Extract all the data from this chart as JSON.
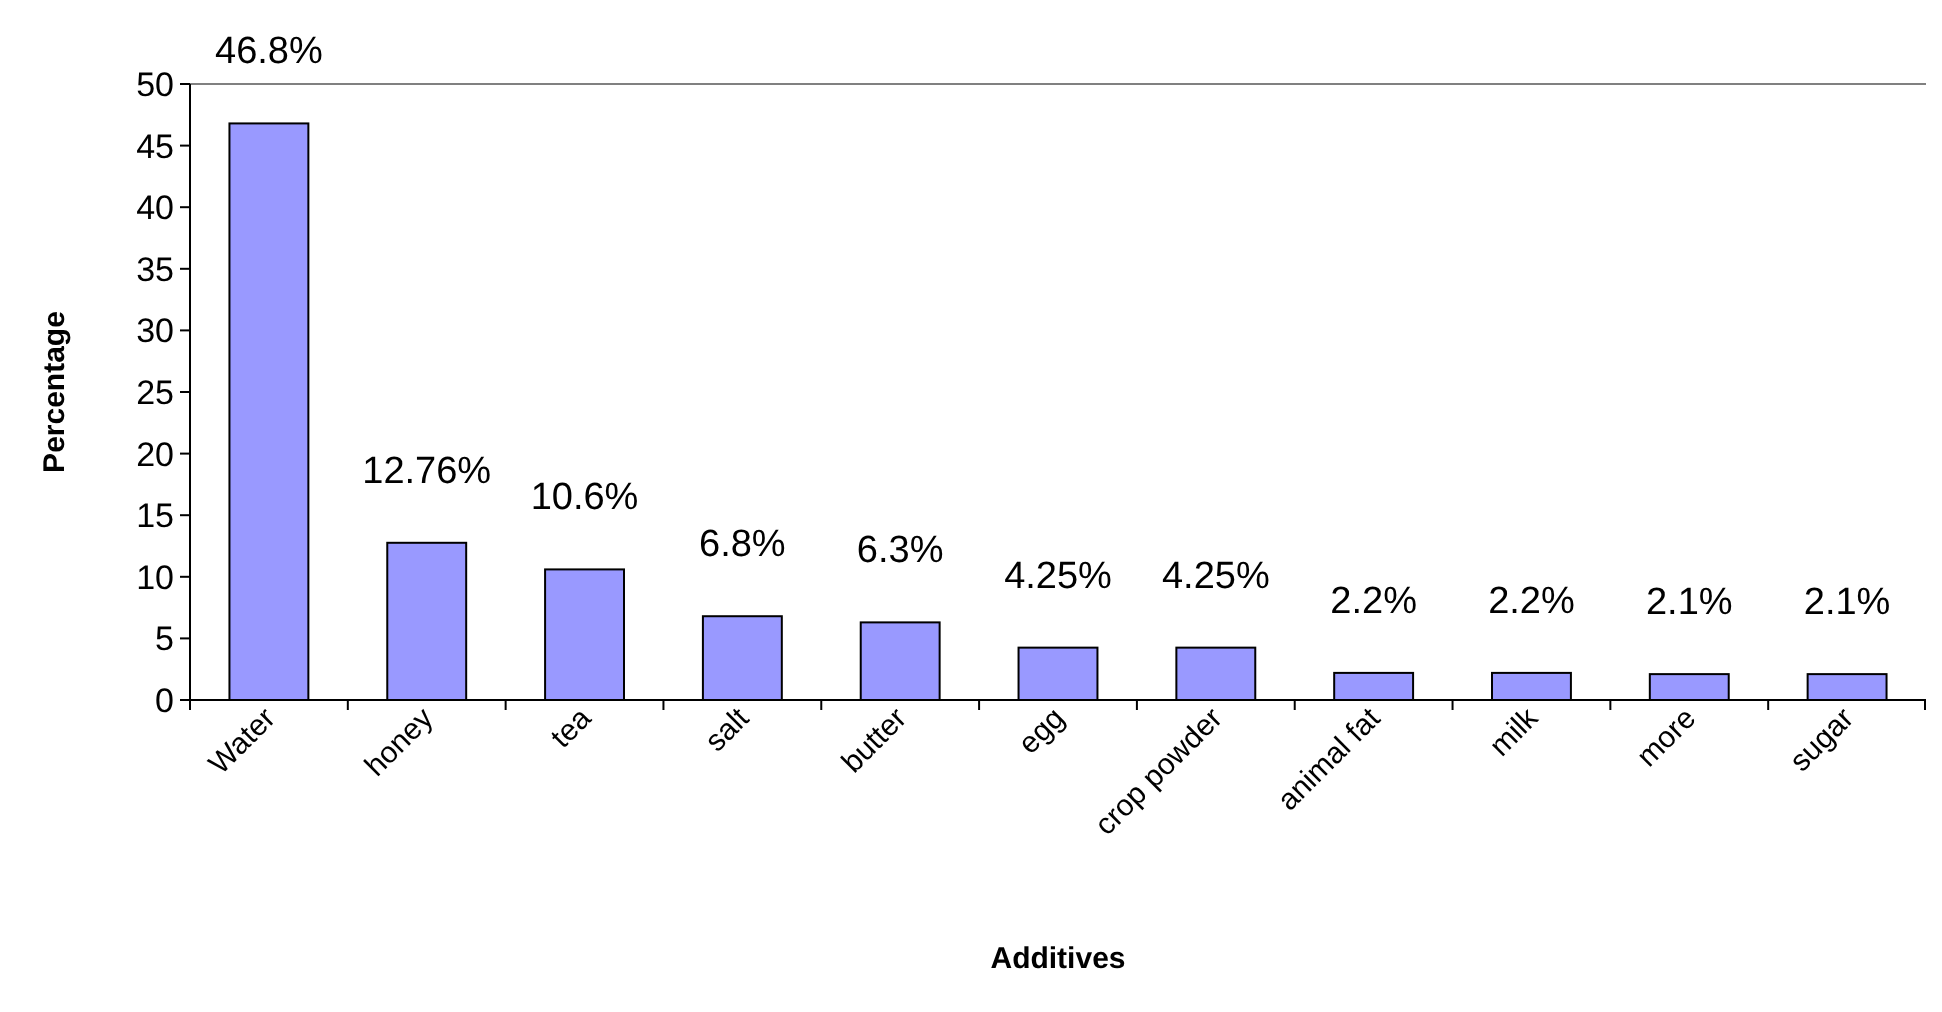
{
  "chart_data": {
    "type": "bar",
    "xlabel": "Additives",
    "ylabel": "Percentage",
    "categories": [
      "Water",
      "honey",
      "tea",
      "salt",
      "butter",
      "egg",
      "crop powder",
      "animal fat",
      "milk",
      "more",
      "sugar"
    ],
    "values": [
      46.8,
      12.76,
      10.6,
      6.8,
      6.3,
      4.25,
      4.25,
      2.2,
      2.2,
      2.1,
      2.1
    ],
    "value_labels": [
      "46.8%",
      "12.76%",
      "10.6%",
      "6.8%",
      "6.3%",
      "4.25%",
      "4.25%",
      "2.2%",
      "2.2%",
      "2.1%",
      "2.1%"
    ],
    "color": "#9999ff",
    "ylim": [
      0,
      50
    ],
    "yticks": [
      0,
      5,
      10,
      15,
      20,
      25,
      30,
      35,
      40,
      45,
      50
    ],
    "grid": false
  }
}
